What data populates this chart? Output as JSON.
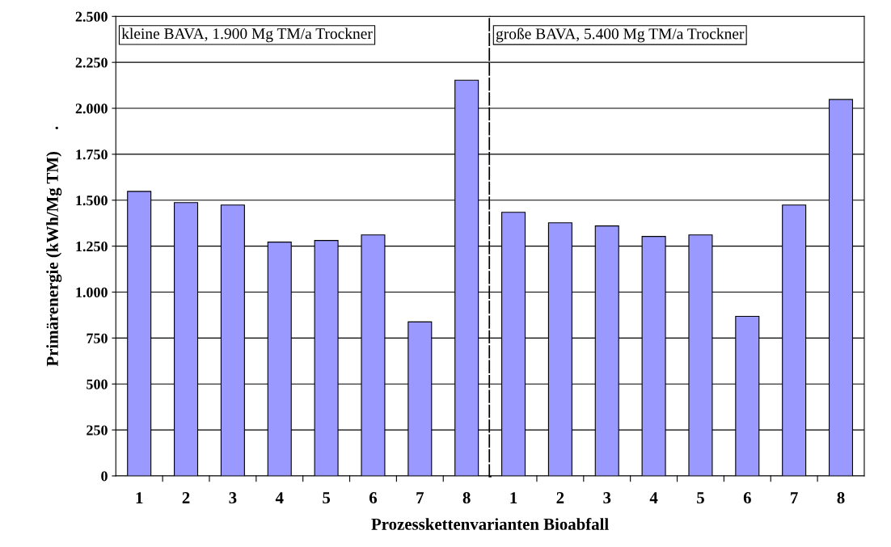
{
  "chart_data": [
    {
      "type": "bar",
      "xlabel": "Prozesskettenvarianten Bioabfall",
      "ylabel": "Primärenergie (kWh/Mg TM)     .",
      "categories": [
        "1",
        "2",
        "3",
        "4",
        "5",
        "6",
        "7",
        "8"
      ],
      "values": [
        1548,
        1487,
        1474,
        1272,
        1281,
        1311,
        838,
        2153
      ],
      "color": "#9999ff",
      "ylim": [
        0,
        2500
      ],
      "yticks": [
        {
          "value": 0,
          "label": "0"
        },
        {
          "value": 250,
          "label": "250"
        },
        {
          "value": 500,
          "label": "500"
        },
        {
          "value": 750,
          "label": "750"
        },
        {
          "value": 1000,
          "label": "1.000"
        },
        {
          "value": 1250,
          "label": "1.250"
        },
        {
          "value": 1500,
          "label": "1.500"
        },
        {
          "value": 1750,
          "label": "1.750"
        },
        {
          "value": 2000,
          "label": "2.000"
        },
        {
          "value": 2250,
          "label": "2.250"
        },
        {
          "value": 2500,
          "label": "2.500"
        }
      ],
      "grid": "y",
      "annotations": [
        "kleine BAVA, 1.900 Mg TM/a Trockner"
      ]
    },
    {
      "type": "bar",
      "categories": [
        "1",
        "2",
        "3",
        "4",
        "5",
        "6",
        "7",
        "8"
      ],
      "values": [
        1434,
        1377,
        1360,
        1303,
        1311,
        868,
        1474,
        2048
      ],
      "color": "#9999ff",
      "ylim": [
        0,
        2500
      ],
      "yticks": [
        0,
        250,
        500,
        750,
        1000,
        1250,
        1500,
        1750,
        2000,
        2250,
        2500
      ],
      "grid": "y",
      "tick_labels": "x",
      "annotations": [
        "große BAVA, 5.400 Mg TM/a Trockner"
      ]
    }
  ]
}
